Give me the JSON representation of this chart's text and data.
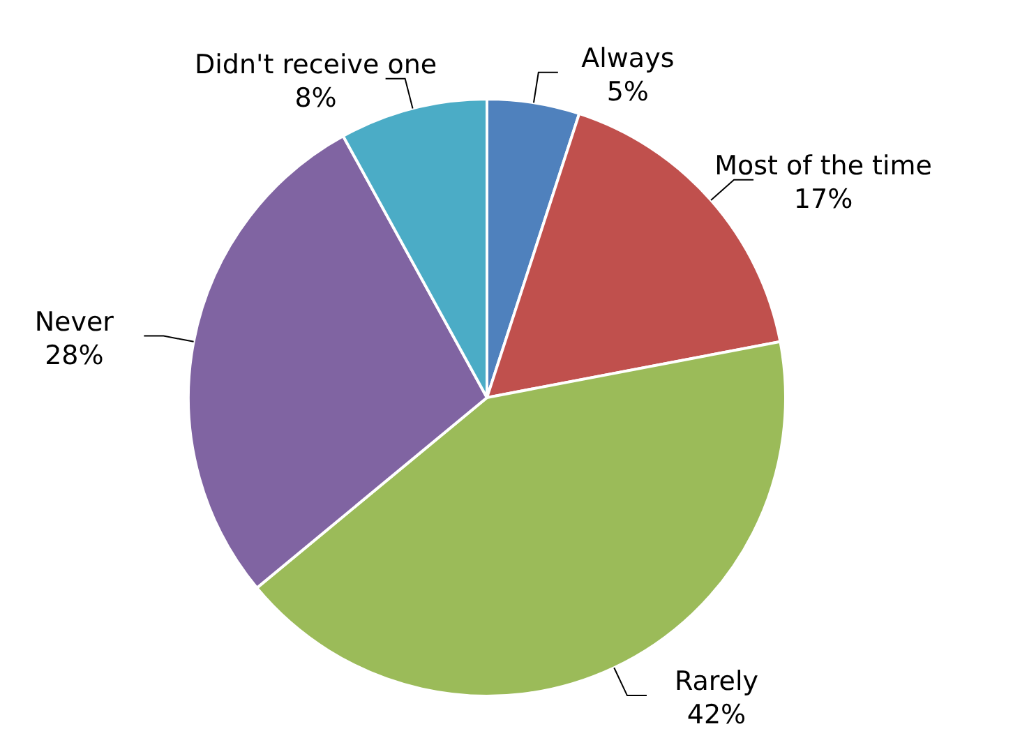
{
  "chart_data": {
    "type": "pie",
    "categories": [
      "Always",
      "Most of the time",
      "Rarely",
      "Never",
      "Didn't receive one"
    ],
    "values": [
      5,
      17,
      42,
      28,
      8
    ],
    "colors": [
      "#4f81bd",
      "#c0504d",
      "#9bbb59",
      "#8064a2",
      "#4bacc6"
    ],
    "value_labels": [
      "5%",
      "17%",
      "42%",
      "28%",
      "8%"
    ],
    "legend": false
  }
}
